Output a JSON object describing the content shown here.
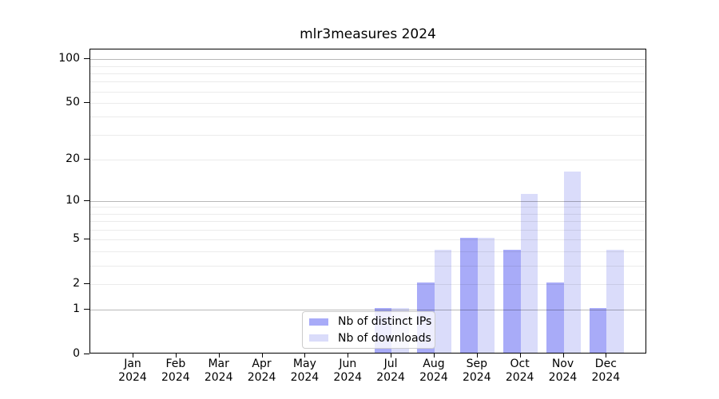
{
  "chart_data": {
    "type": "bar",
    "title": "mlr3measures 2024",
    "year": "2024",
    "categories": [
      "Jan",
      "Feb",
      "Mar",
      "Apr",
      "May",
      "Jun",
      "Jul",
      "Aug",
      "Sep",
      "Oct",
      "Nov",
      "Dec"
    ],
    "series": [
      {
        "name": "Nb of distinct IPs",
        "color": "#a8abf8",
        "values": [
          0,
          0,
          0,
          0,
          0,
          0,
          1,
          2,
          5,
          4,
          2,
          1
        ]
      },
      {
        "name": "Nb of downloads",
        "color": "#dadcfa",
        "values": [
          0,
          0,
          0,
          0,
          0,
          0,
          1,
          4,
          5,
          11,
          16,
          4
        ]
      }
    ],
    "yscale": "log1p",
    "ylim": [
      0,
      117
    ],
    "y_ticks": [
      100,
      50,
      20,
      10,
      5,
      2,
      1,
      0
    ],
    "grid_major": [
      1,
      10,
      100
    ],
    "grid_minor": [
      2,
      3,
      4,
      5,
      6,
      7,
      8,
      9,
      20,
      30,
      40,
      50,
      60,
      70,
      80,
      90
    ],
    "legend_position": "lower center",
    "grid": "on"
  }
}
